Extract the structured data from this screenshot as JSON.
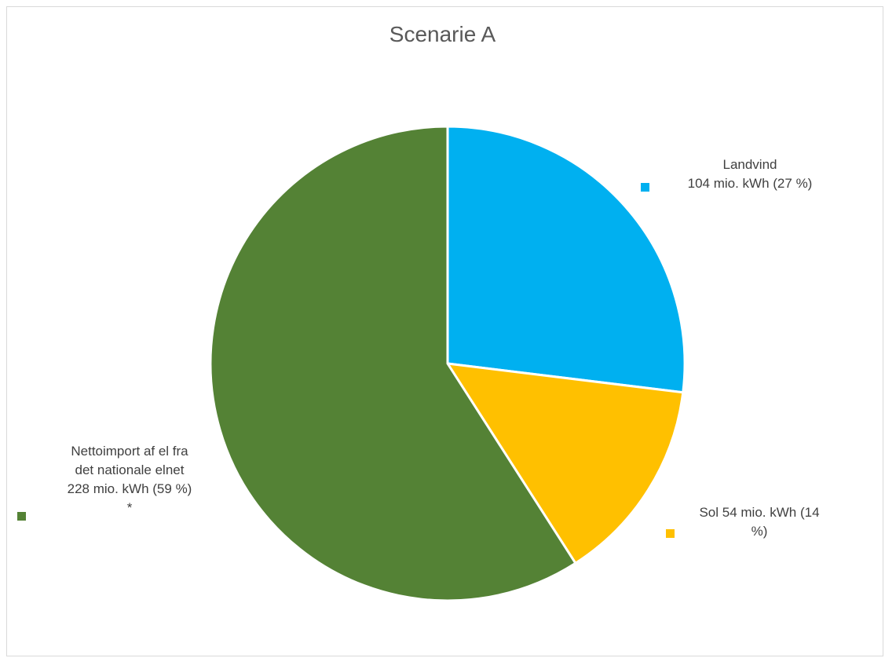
{
  "chart_data": {
    "type": "pie",
    "title": "Scenarie A",
    "legend": "none",
    "slices": [
      {
        "label": "Landvind",
        "value": 104,
        "percent": 27,
        "color": "#00b0f0",
        "label_text": "Landvind\n104 mio. kWh (27 %)"
      },
      {
        "label": "Sol",
        "value": 54,
        "percent": 14,
        "color": "#ffc000",
        "label_text": "Sol 54 mio. kWh (14\n%)"
      },
      {
        "label": "Nettoimport af el fra det nationale elnet",
        "value": 228,
        "percent": 59,
        "color": "#548235",
        "label_text": "Nettoimport af el fra\ndet nationale elnet\n228 mio. kWh (59 %)\n*"
      }
    ]
  }
}
